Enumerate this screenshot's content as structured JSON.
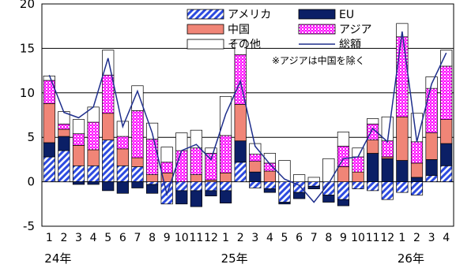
{
  "chart_data": {
    "type": "bar",
    "stacked": true,
    "ylim": [
      -5,
      20
    ],
    "yticks": [
      -5,
      0,
      5,
      10,
      15,
      20
    ],
    "grid": "horizontal",
    "legend_position": "top-right",
    "categories": [
      "1",
      "2",
      "3",
      "4",
      "5",
      "6",
      "7",
      "8",
      "9",
      "10",
      "11",
      "12",
      "1",
      "2",
      "3",
      "4",
      "5",
      "6",
      "7",
      "8",
      "9",
      "10",
      "11",
      "12",
      "1",
      "2",
      "3",
      "4"
    ],
    "year_labels": [
      {
        "label": "24年",
        "category_index": 0
      },
      {
        "label": "25年",
        "category_index": 12
      },
      {
        "label": "26年",
        "category_index": 24
      }
    ],
    "series": [
      {
        "name": "アメリカ",
        "pattern": "diagonal-stripes",
        "color": "#2c4ae0",
        "values": [
          2.8,
          3.5,
          1.8,
          1.8,
          4.7,
          1.8,
          1.7,
          -0.3,
          -2.5,
          -1.0,
          -1.0,
          -1.0,
          -1.0,
          2.2,
          -0.7,
          -0.8,
          -2.3,
          -1.2,
          -0.5,
          -1.5,
          -2.0,
          -0.8,
          -1.0,
          -2.0,
          -1.2,
          -1.5,
          0.7,
          1.8
        ]
      },
      {
        "name": "EU",
        "pattern": "solid",
        "color": "#0b1f66",
        "values": [
          1.6,
          1.6,
          -0.3,
          -0.3,
          -1.0,
          -1.3,
          -0.7,
          -1.0,
          0.0,
          -1.5,
          -1.8,
          -0.6,
          -1.4,
          2.4,
          1.1,
          -0.4,
          -0.2,
          -0.7,
          -0.3,
          -0.8,
          -0.7,
          0.0,
          3.2,
          2.6,
          2.4,
          0.5,
          1.8,
          2.5
        ]
      },
      {
        "name": "中国",
        "pattern": "solid",
        "color": "#f08577",
        "values": [
          4.4,
          0.8,
          2.3,
          1.8,
          3.0,
          1.9,
          1.0,
          0.8,
          1.0,
          0.0,
          0.8,
          0.2,
          1.0,
          4.1,
          1.2,
          1.2,
          0.0,
          0.0,
          0.0,
          0.0,
          1.7,
          1.1,
          1.5,
          0.2,
          4.9,
          1.6,
          3.0,
          2.7
        ]
      },
      {
        "name": "アジア",
        "pattern": "checker",
        "color": "#ff00ff",
        "values": [
          2.6,
          0.6,
          1.3,
          3.1,
          4.3,
          1.4,
          5.3,
          4.0,
          1.2,
          3.5,
          3.0,
          3.0,
          4.2,
          5.6,
          0.8,
          0.9,
          0.0,
          0.0,
          0.0,
          0.0,
          2.3,
          1.7,
          1.8,
          1.8,
          9.0,
          2.4,
          5.0,
          6.0
        ]
      },
      {
        "name": "その他",
        "pattern": "solid",
        "color": "#ffffff",
        "values": [
          0.5,
          1.4,
          1.6,
          1.7,
          2.8,
          1.7,
          2.8,
          1.8,
          1.7,
          2.0,
          2.0,
          0.6,
          4.4,
          1.7,
          1.2,
          1.1,
          2.4,
          0.8,
          0.5,
          2.6,
          1.6,
          1.0,
          0.6,
          2.7,
          1.5,
          3.2,
          1.3,
          1.8
        ]
      },
      {
        "name": "総額",
        "type": "line",
        "color": "#1e2e8c",
        "values": [
          12.0,
          7.8,
          7.2,
          8.4,
          13.9,
          6.2,
          10.2,
          5.5,
          -1.4,
          3.5,
          4.2,
          2.5,
          7.6,
          11.3,
          4.0,
          2.0,
          0.3,
          -0.4,
          -2.3,
          -0.2,
          2.6,
          2.8,
          6.0,
          4.5,
          16.9,
          4.5,
          11.0,
          14.5
        ]
      }
    ],
    "note": "※アジアは中国を除く"
  }
}
